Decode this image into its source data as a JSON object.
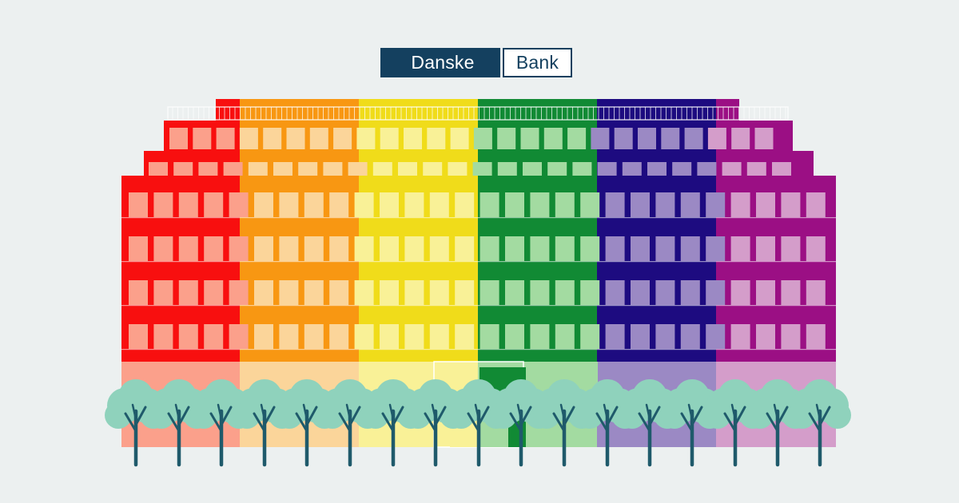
{
  "logo": {
    "part1": "Danske",
    "part2": "Bank"
  },
  "colors": {
    "background": "#ecf0f0",
    "logo_navy": "#14405f",
    "trunk": "#1f5a6b",
    "foliage": "#8fd2bc",
    "stripes": [
      "#f80f0f",
      "#f89712",
      "#f0dc1a",
      "#118a34",
      "#1d0b80",
      "#9b0f84"
    ],
    "windows": [
      "#fba08b",
      "#fbd59a",
      "#f9f197",
      "#a3dba1",
      "#9b89c4",
      "#d49dca"
    ]
  },
  "icons": {
    "tree": "tree-icon"
  }
}
